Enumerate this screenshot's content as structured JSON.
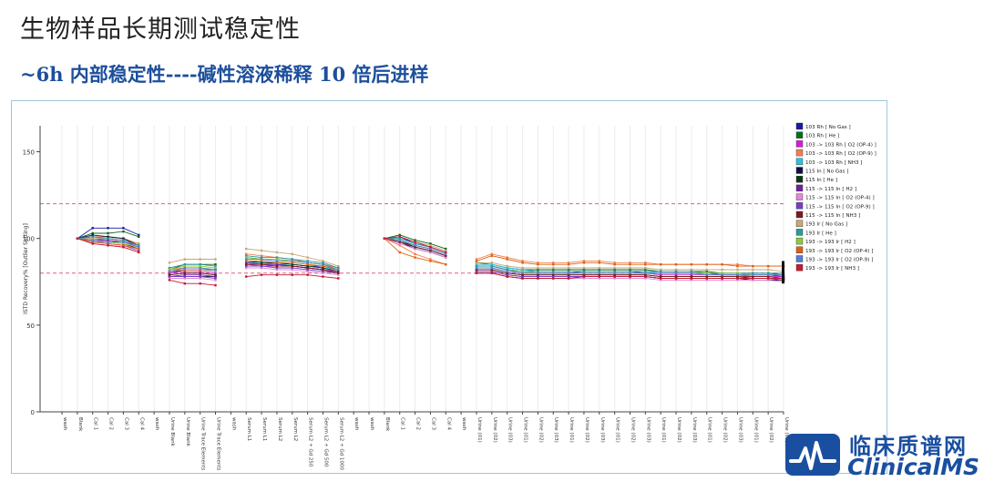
{
  "page": {
    "title": "生物样品长期测试稳定性",
    "subtitle": "~6h 内部稳定性----碱性溶液稀释 10 倍后进样"
  },
  "logo": {
    "name_cn": "临床质谱网",
    "name_en": "ClinicalMS",
    "color": "#1a4fa0"
  },
  "chart_data": {
    "type": "line",
    "title": "",
    "xlabel": "",
    "ylabel": "ISTD Recovery% [Outlier Setting]",
    "ylim": [
      0,
      165
    ],
    "yticks": [
      0,
      50,
      100,
      150
    ],
    "reference_lines": [
      {
        "value": 120,
        "color": "#e0607e",
        "style": "dashed"
      },
      {
        "value": 80,
        "color": "#e0607e",
        "style": "dashed"
      }
    ],
    "legend_position": "right",
    "categories": [
      "wash",
      "Blank",
      "Cal 1",
      "Cal 2",
      "Cal 3",
      "Cal 4",
      "wash",
      "Urine Blank",
      "Urine Blank",
      "Urine Trace Elements",
      "Urine Trace Elements",
      "wash",
      "Serum L1",
      "Serum L1",
      "Serum L2",
      "Serum L2",
      "Serum L2 + Gd 250",
      "Serum L2 + Gd 500",
      "Serum L2 + Gd 1000",
      "wash",
      "wash",
      "Blank",
      "Cal 1",
      "Cal 2",
      "Cal 3",
      "Cal 4",
      "wash",
      "Urine (01)",
      "Urine (02)",
      "Urine (03)",
      "Urine (01)",
      "Urine (02)",
      "Urine (03)",
      "Urine (01)",
      "Urine (02)",
      "Urine (03)",
      "Urine (01)",
      "Urine (02)",
      "Urine (03)",
      "Urine (01)",
      "Urine (02)",
      "Urine (03)",
      "Urine (01)",
      "Urine (02)",
      "Urine (03)",
      "Urine (01)",
      "Urine (02)",
      "Urine (03)"
    ],
    "series": [
      {
        "name": "103 Rh [ No Gas ]",
        "color": "#1a1aa8",
        "values": [
          null,
          100,
          106,
          106,
          106,
          102,
          null,
          80,
          82,
          82,
          82,
          null,
          87,
          86,
          86,
          85,
          84,
          84,
          82,
          null,
          null,
          100,
          101,
          97,
          95,
          92,
          null,
          84,
          84,
          82,
          81,
          80,
          80,
          80,
          81,
          81,
          81,
          81,
          80,
          80,
          80,
          80,
          80,
          79,
          79,
          79,
          79,
          78
        ]
      },
      {
        "name": "103 Rh [ He ]",
        "color": "#0d6b1e",
        "values": [
          null,
          100,
          103,
          103,
          104,
          101,
          null,
          82,
          85,
          85,
          85,
          null,
          89,
          88,
          88,
          87,
          86,
          85,
          83,
          null,
          null,
          100,
          102,
          99,
          97,
          94,
          null,
          86,
          85,
          83,
          82,
          82,
          82,
          82,
          82,
          82,
          82,
          82,
          82,
          81,
          81,
          81,
          81,
          80,
          80,
          80,
          80,
          79
        ]
      },
      {
        "name": "103 -> 103 Rh [ O2 (OP-4) ]",
        "color": "#d020d0",
        "values": [
          null,
          100,
          99,
          99,
          98,
          96,
          null,
          80,
          81,
          81,
          80,
          null,
          85,
          84,
          84,
          84,
          83,
          82,
          81,
          null,
          null,
          100,
          99,
          96,
          94,
          91,
          null,
          83,
          83,
          81,
          80,
          80,
          80,
          80,
          80,
          80,
          80,
          80,
          80,
          79,
          79,
          79,
          79,
          79,
          79,
          78,
          78,
          78
        ]
      },
      {
        "name": "103 -> 103 Rh [ O2 (OP-9) ]",
        "color": "#f08050",
        "values": [
          null,
          100,
          101,
          101,
          100,
          97,
          null,
          82,
          83,
          83,
          82,
          null,
          91,
          90,
          89,
          88,
          86,
          85,
          83,
          null,
          null,
          100,
          96,
          91,
          88,
          85,
          null,
          88,
          91,
          89,
          87,
          86,
          86,
          86,
          87,
          87,
          86,
          86,
          86,
          85,
          85,
          85,
          85,
          85,
          85,
          84,
          84,
          84
        ]
      },
      {
        "name": "103 -> 103 Rh [ NH3 ]",
        "color": "#30c0e0",
        "values": [
          null,
          100,
          98,
          98,
          97,
          95,
          null,
          81,
          82,
          82,
          81,
          null,
          86,
          86,
          85,
          85,
          84,
          83,
          82,
          null,
          null,
          100,
          100,
          97,
          95,
          92,
          null,
          85,
          85,
          83,
          82,
          81,
          81,
          81,
          81,
          81,
          81,
          81,
          81,
          80,
          80,
          80,
          80,
          80,
          80,
          79,
          79,
          79
        ]
      },
      {
        "name": "115 In [ No Gas ]",
        "color": "#101040",
        "values": [
          null,
          100,
          102,
          101,
          100,
          96,
          null,
          78,
          78,
          78,
          78,
          null,
          86,
          85,
          85,
          84,
          83,
          82,
          80,
          null,
          null,
          100,
          98,
          94,
          92,
          89,
          null,
          80,
          80,
          78,
          77,
          77,
          77,
          77,
          78,
          78,
          78,
          78,
          78,
          77,
          77,
          77,
          77,
          77,
          77,
          76,
          76,
          76
        ]
      },
      {
        "name": "115 In [ He ]",
        "color": "#0a3a12",
        "values": [
          null,
          100,
          101,
          100,
          99,
          96,
          null,
          79,
          80,
          80,
          79,
          null,
          87,
          86,
          86,
          85,
          84,
          83,
          81,
          null,
          null,
          100,
          99,
          95,
          93,
          90,
          null,
          82,
          82,
          80,
          79,
          79,
          79,
          79,
          79,
          79,
          79,
          79,
          79,
          78,
          78,
          78,
          78,
          78,
          78,
          77,
          77,
          77
        ]
      },
      {
        "name": "115 -> 115 In [ H2 ]",
        "color": "#7020a0",
        "values": [
          null,
          100,
          100,
          99,
          98,
          95,
          null,
          78,
          79,
          79,
          78,
          null,
          86,
          85,
          85,
          84,
          83,
          82,
          80,
          null,
          null,
          100,
          98,
          95,
          93,
          90,
          null,
          81,
          81,
          79,
          78,
          78,
          78,
          78,
          78,
          78,
          78,
          78,
          78,
          77,
          77,
          77,
          77,
          77,
          77,
          77,
          77,
          76
        ]
      },
      {
        "name": "115 -> 115 In [ O2 (OP-4) ]",
        "color": "#e08ad8",
        "values": [
          null,
          100,
          97,
          96,
          95,
          92,
          null,
          77,
          77,
          77,
          76,
          null,
          83,
          83,
          82,
          82,
          81,
          80,
          79,
          null,
          null,
          100,
          97,
          94,
          92,
          89,
          null,
          80,
          80,
          78,
          77,
          77,
          77,
          77,
          77,
          77,
          77,
          77,
          77,
          76,
          76,
          76,
          76,
          76,
          76,
          76,
          76,
          75
        ]
      },
      {
        "name": "115 -> 115 In [ O2 (OP-9) ]",
        "color": "#7a3cc8",
        "values": [
          null,
          100,
          98,
          97,
          96,
          93,
          null,
          78,
          78,
          78,
          77,
          null,
          84,
          84,
          83,
          83,
          82,
          81,
          80,
          null,
          null,
          100,
          98,
          95,
          93,
          90,
          null,
          81,
          81,
          79,
          78,
          78,
          78,
          78,
          78,
          78,
          78,
          78,
          78,
          77,
          77,
          77,
          77,
          77,
          77,
          77,
          77,
          76
        ]
      },
      {
        "name": "115 -> 115 In [ NH3 ]",
        "color": "#7a1c1c",
        "values": [
          null,
          100,
          99,
          98,
          97,
          94,
          null,
          79,
          80,
          80,
          79,
          null,
          85,
          85,
          84,
          84,
          83,
          82,
          80,
          null,
          null,
          100,
          98,
          95,
          93,
          90,
          null,
          82,
          82,
          80,
          79,
          79,
          79,
          79,
          79,
          79,
          79,
          79,
          79,
          78,
          78,
          78,
          78,
          78,
          78,
          78,
          78,
          77
        ]
      },
      {
        "name": "193 Ir [ No Gas ]",
        "color": "#c8a878",
        "values": [
          null,
          100,
          100,
          100,
          99,
          96,
          null,
          86,
          88,
          88,
          88,
          null,
          94,
          93,
          92,
          91,
          89,
          87,
          84,
          null,
          null,
          100,
          101,
          98,
          96,
          93,
          null,
          86,
          86,
          84,
          83,
          83,
          83,
          83,
          83,
          83,
          83,
          83,
          83,
          82,
          82,
          82,
          82,
          82,
          82,
          82,
          82,
          81
        ]
      },
      {
        "name": "193 Ir [ He ]",
        "color": "#2a9a9a",
        "values": [
          null,
          100,
          101,
          100,
          99,
          96,
          null,
          83,
          85,
          85,
          84,
          null,
          90,
          89,
          89,
          88,
          87,
          86,
          83,
          null,
          null,
          100,
          100,
          97,
          95,
          92,
          null,
          84,
          84,
          82,
          81,
          81,
          81,
          81,
          81,
          81,
          81,
          81,
          81,
          81,
          81,
          81,
          80,
          80,
          80,
          80,
          80,
          80
        ]
      },
      {
        "name": "193 -> 193 Ir [ H2 ]",
        "color": "#8ccc30",
        "values": [
          null,
          100,
          99,
          98,
          97,
          95,
          null,
          82,
          84,
          84,
          83,
          null,
          89,
          88,
          88,
          87,
          86,
          85,
          82,
          null,
          null,
          100,
          99,
          96,
          94,
          91,
          null,
          83,
          83,
          81,
          81,
          80,
          80,
          80,
          80,
          80,
          80,
          80,
          80,
          80,
          80,
          80,
          80,
          80,
          80,
          79,
          79,
          79
        ]
      },
      {
        "name": "193 -> 193 Ir [ O2 (OP-4) ]",
        "color": "#e06010",
        "values": [
          null,
          100,
          98,
          97,
          96,
          94,
          null,
          81,
          82,
          82,
          82,
          null,
          87,
          87,
          86,
          86,
          85,
          84,
          82,
          null,
          null,
          100,
          92,
          89,
          87,
          85,
          null,
          87,
          90,
          88,
          86,
          85,
          85,
          85,
          86,
          86,
          85,
          85,
          85,
          85,
          85,
          85,
          85,
          85,
          84,
          84,
          84,
          84
        ]
      },
      {
        "name": "193 -> 193 Ir [ O2 (OP-9) ]",
        "color": "#5080d8",
        "values": [
          null,
          100,
          99,
          98,
          98,
          95,
          null,
          81,
          83,
          83,
          82,
          null,
          88,
          88,
          87,
          87,
          86,
          85,
          82,
          null,
          null,
          100,
          99,
          96,
          94,
          91,
          null,
          83,
          83,
          81,
          80,
          80,
          80,
          80,
          80,
          80,
          80,
          80,
          80,
          80,
          80,
          80,
          79,
          79,
          79,
          79,
          79,
          79
        ]
      },
      {
        "name": "193 -> 193 Ir [ NH3 ]",
        "color": "#c81830",
        "values": [
          null,
          100,
          97,
          96,
          95,
          92,
          null,
          76,
          74,
          74,
          73,
          null,
          78,
          79,
          79,
          79,
          79,
          78,
          77,
          null,
          null,
          100,
          101,
          98,
          95,
          92,
          null,
          80,
          80,
          78,
          77,
          77,
          77,
          77,
          78,
          78,
          78,
          78,
          78,
          77,
          77,
          77,
          77,
          77,
          77,
          77,
          77,
          77
        ]
      }
    ]
  }
}
